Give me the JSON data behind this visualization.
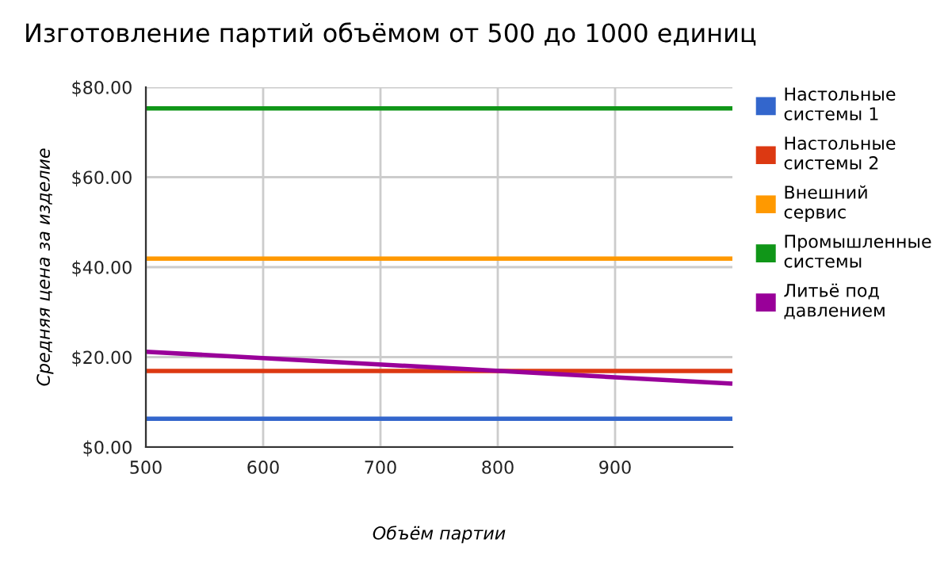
{
  "chart_data": {
    "type": "line",
    "title": "Изготовление партий объёмом от 500 до 1000 единиц",
    "xlabel": "Объём партии",
    "ylabel": "Средняя цена за изделие",
    "x": [
      500,
      1000
    ],
    "series": [
      {
        "name": "Настольные\nсистемы 1",
        "color": "#3366cc",
        "values": [
          6.3,
          6.3
        ]
      },
      {
        "name": "Настольные\nсистемы 2",
        "color": "#dc3912",
        "values": [
          16.9,
          16.9
        ]
      },
      {
        "name": "Внешний\nсервис",
        "color": "#ff9900",
        "values": [
          41.9,
          41.9
        ]
      },
      {
        "name": "Промышленные\nсистемы",
        "color": "#109618",
        "values": [
          75.3,
          75.3
        ]
      },
      {
        "name": "Литьё под\nдавлением",
        "color": "#990099",
        "values": [
          21.2,
          14.1
        ]
      }
    ],
    "xlim": [
      500,
      1000
    ],
    "xticks": [
      500,
      600,
      700,
      800,
      900
    ],
    "ylim": [
      0,
      80
    ],
    "yticks": [
      {
        "value": 0,
        "label": "$0.00"
      },
      {
        "value": 20,
        "label": "$20.00"
      },
      {
        "value": 40,
        "label": "$40.00"
      },
      {
        "value": 60,
        "label": "$60.00"
      },
      {
        "value": 80,
        "label": "$80.00"
      }
    ],
    "grid": true,
    "legend": "right",
    "marker": "none",
    "line_style": "solid"
  }
}
